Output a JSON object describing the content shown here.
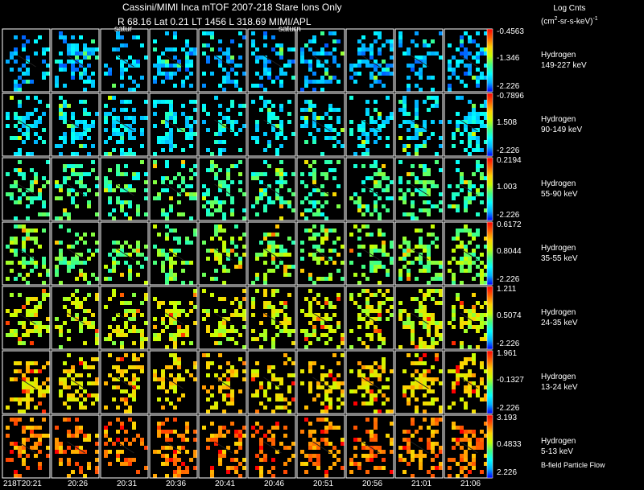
{
  "header": {
    "title_line1": "Cassini/MIMI Inca mTOF  2007-218   Stare   Ions Only",
    "title_line2": "R          68.16 Lat 0.21 LT 1456 L          318.69  MIMI/APL"
  },
  "colorbar_title": {
    "line1": "Log Cnts",
    "line2_main": "(cm",
    "line2_sup": "2",
    "line2_rest": "-sr-s-keV)",
    "line2_sup2": "-1"
  },
  "annotations": {
    "saturn_labels": [
      "satur",
      "saturn"
    ],
    "bfield_legend": "B-field Particle Flow"
  },
  "colors": {
    "background": "#000000",
    "panel_border": "#ffffff",
    "colormap": [
      "#0000ff",
      "#00b0ff",
      "#00ffff",
      "#40ff80",
      "#c8ff00",
      "#ffd000",
      "#ff6000",
      "#ff0000"
    ]
  },
  "chart_data": {
    "type": "heatmap",
    "title": "Cassini/MIMI Inca mTOF  2007-218   Stare   Ions Only",
    "colorbar_scale": "log",
    "x_tick_labels": [
      "218T20:21",
      "20:26",
      "20:31",
      "20:36",
      "20:41",
      "20:46",
      "20:51",
      "20:56",
      "21:01",
      "21:06"
    ],
    "rows": [
      {
        "species": "Hydrogen",
        "energy": "149-227 keV",
        "cb_max": "-0.4563",
        "cb_mid": "-1.346",
        "cb_min": "-2.226"
      },
      {
        "species": "Hydrogen",
        "energy": "90-149 keV",
        "cb_max": "-0.7896",
        "cb_mid": "1.508",
        "cb_min": "-2.226"
      },
      {
        "species": "Hydrogen",
        "energy": "55-90 keV",
        "cb_max": "0.2194",
        "cb_mid": "1.003",
        "cb_min": "-2.226"
      },
      {
        "species": "Hydrogen",
        "energy": "35-55 keV",
        "cb_max": "0.6172",
        "cb_mid": "0.8044",
        "cb_min": "-2.226"
      },
      {
        "species": "Hydrogen",
        "energy": "24-35 keV",
        "cb_max": "1.211",
        "cb_mid": "0.5074",
        "cb_min": "-2.226"
      },
      {
        "species": "Hydrogen",
        "energy": "13-24 keV",
        "cb_max": "1.961",
        "cb_mid": "-0.1327",
        "cb_min": "-2.226"
      },
      {
        "species": "Hydrogen",
        "energy": "5-13 keV",
        "cb_max": "3.193",
        "cb_mid": "0.4833",
        "cb_min": "2.226"
      }
    ],
    "row_color_level": [
      0.18,
      0.25,
      0.4,
      0.48,
      0.6,
      0.68,
      0.8
    ]
  }
}
